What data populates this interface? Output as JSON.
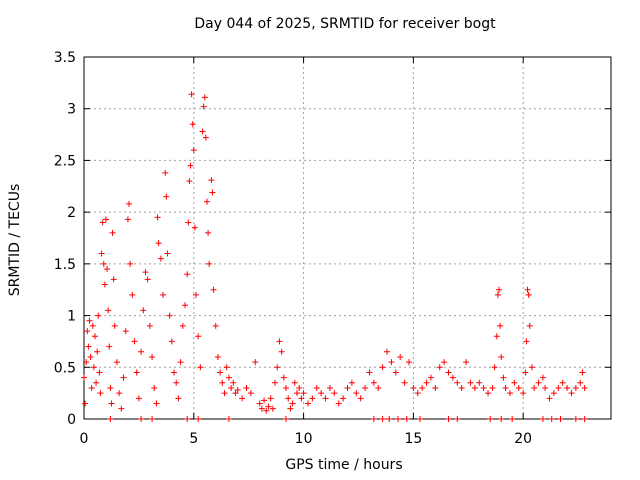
{
  "chart_data": {
    "type": "scatter",
    "title": "Day 044 of 2025, SRMTID for receiver bogt",
    "xlabel": "GPS time / hours",
    "ylabel": "SRMTID / TECUs",
    "xlim": [
      0,
      24
    ],
    "ylim": [
      0,
      3.5
    ],
    "x_ticks": [
      0,
      5,
      10,
      15,
      20
    ],
    "x_tick_labels": [
      "0",
      "5",
      "10",
      "15",
      "20"
    ],
    "y_ticks": [
      0,
      0.5,
      1,
      1.5,
      2,
      2.5,
      3,
      3.5
    ],
    "y_tick_labels": [
      "0",
      "0.5",
      "1",
      "1.5",
      "2",
      "2.5",
      "3",
      "3.5"
    ],
    "grid": true,
    "marker": "+",
    "color": "#ff0000",
    "series": [
      {
        "name": "SRMTID",
        "points": [
          [
            0.0,
            0.4
          ],
          [
            0.05,
            0.15
          ],
          [
            0.1,
            0.55
          ],
          [
            0.15,
            0.85
          ],
          [
            0.2,
            0.7
          ],
          [
            0.25,
            0.95
          ],
          [
            0.3,
            0.6
          ],
          [
            0.35,
            0.3
          ],
          [
            0.4,
            0.9
          ],
          [
            0.45,
            0.5
          ],
          [
            0.5,
            0.8
          ],
          [
            0.55,
            0.35
          ],
          [
            0.6,
            0.65
          ],
          [
            0.65,
            1.0
          ],
          [
            0.7,
            0.45
          ],
          [
            0.75,
            0.25
          ],
          [
            0.8,
            1.6
          ],
          [
            0.85,
            1.9
          ],
          [
            0.9,
            1.5
          ],
          [
            0.95,
            1.3
          ],
          [
            1.0,
            1.93
          ],
          [
            1.05,
            1.45
          ],
          [
            1.1,
            1.05
          ],
          [
            1.15,
            0.7
          ],
          [
            1.2,
            0.3
          ],
          [
            1.25,
            0.15
          ],
          [
            1.3,
            1.8
          ],
          [
            1.35,
            1.35
          ],
          [
            1.4,
            0.9
          ],
          [
            1.5,
            0.55
          ],
          [
            1.6,
            0.25
          ],
          [
            1.7,
            0.1
          ],
          [
            1.8,
            0.4
          ],
          [
            1.9,
            0.85
          ],
          [
            2.0,
            1.93
          ],
          [
            2.05,
            2.08
          ],
          [
            2.1,
            1.5
          ],
          [
            2.2,
            1.2
          ],
          [
            2.3,
            0.75
          ],
          [
            2.4,
            0.45
          ],
          [
            2.5,
            0.2
          ],
          [
            2.6,
            0.65
          ],
          [
            2.7,
            1.05
          ],
          [
            2.8,
            1.42
          ],
          [
            2.9,
            1.35
          ],
          [
            3.0,
            0.9
          ],
          [
            3.1,
            0.6
          ],
          [
            3.2,
            0.3
          ],
          [
            3.3,
            0.15
          ],
          [
            3.35,
            1.95
          ],
          [
            3.4,
            1.7
          ],
          [
            3.5,
            1.55
          ],
          [
            3.6,
            1.2
          ],
          [
            3.7,
            2.38
          ],
          [
            3.75,
            2.15
          ],
          [
            3.8,
            1.6
          ],
          [
            3.9,
            1.0
          ],
          [
            4.0,
            0.75
          ],
          [
            4.1,
            0.45
          ],
          [
            4.2,
            0.35
          ],
          [
            4.3,
            0.2
          ],
          [
            4.4,
            0.55
          ],
          [
            4.5,
            0.9
          ],
          [
            4.6,
            1.1
          ],
          [
            4.7,
            1.4
          ],
          [
            4.75,
            1.9
          ],
          [
            4.8,
            2.3
          ],
          [
            4.85,
            2.45
          ],
          [
            4.9,
            3.14
          ],
          [
            4.95,
            2.85
          ],
          [
            5.0,
            2.6
          ],
          [
            5.05,
            1.85
          ],
          [
            5.1,
            1.2
          ],
          [
            5.2,
            0.8
          ],
          [
            5.3,
            0.5
          ],
          [
            5.4,
            2.78
          ],
          [
            5.45,
            3.02
          ],
          [
            5.5,
            3.11
          ],
          [
            5.55,
            2.72
          ],
          [
            5.6,
            2.1
          ],
          [
            5.65,
            1.8
          ],
          [
            5.7,
            1.5
          ],
          [
            5.8,
            2.31
          ],
          [
            5.85,
            2.19
          ],
          [
            5.9,
            1.25
          ],
          [
            6.0,
            0.9
          ],
          [
            6.1,
            0.6
          ],
          [
            6.2,
            0.45
          ],
          [
            6.3,
            0.35
          ],
          [
            6.4,
            0.25
          ],
          [
            6.5,
            0.5
          ],
          [
            6.6,
            0.4
          ],
          [
            6.7,
            0.3
          ],
          [
            6.8,
            0.35
          ],
          [
            6.9,
            0.25
          ],
          [
            7.0,
            0.28
          ],
          [
            7.2,
            0.2
          ],
          [
            7.4,
            0.3
          ],
          [
            7.6,
            0.25
          ],
          [
            7.8,
            0.55
          ],
          [
            8.0,
            0.15
          ],
          [
            8.1,
            0.1
          ],
          [
            8.2,
            0.18
          ],
          [
            8.3,
            0.08
          ],
          [
            8.4,
            0.12
          ],
          [
            8.5,
            0.2
          ],
          [
            8.6,
            0.1
          ],
          [
            8.7,
            0.35
          ],
          [
            8.8,
            0.5
          ],
          [
            8.9,
            0.75
          ],
          [
            9.0,
            0.65
          ],
          [
            9.1,
            0.4
          ],
          [
            9.2,
            0.3
          ],
          [
            9.3,
            0.2
          ],
          [
            9.4,
            0.1
          ],
          [
            9.5,
            0.15
          ],
          [
            9.6,
            0.35
          ],
          [
            9.7,
            0.25
          ],
          [
            9.8,
            0.3
          ],
          [
            9.9,
            0.2
          ],
          [
            10.0,
            0.25
          ],
          [
            10.2,
            0.15
          ],
          [
            10.4,
            0.2
          ],
          [
            10.6,
            0.3
          ],
          [
            10.8,
            0.25
          ],
          [
            11.0,
            0.2
          ],
          [
            11.2,
            0.3
          ],
          [
            11.4,
            0.25
          ],
          [
            11.6,
            0.15
          ],
          [
            11.8,
            0.2
          ],
          [
            12.0,
            0.3
          ],
          [
            12.2,
            0.35
          ],
          [
            12.4,
            0.25
          ],
          [
            12.6,
            0.2
          ],
          [
            12.8,
            0.3
          ],
          [
            13.0,
            0.45
          ],
          [
            13.2,
            0.35
          ],
          [
            13.4,
            0.3
          ],
          [
            13.6,
            0.5
          ],
          [
            13.8,
            0.65
          ],
          [
            14.0,
            0.55
          ],
          [
            14.2,
            0.45
          ],
          [
            14.4,
            0.6
          ],
          [
            14.6,
            0.35
          ],
          [
            14.8,
            0.55
          ],
          [
            15.0,
            0.3
          ],
          [
            15.2,
            0.25
          ],
          [
            15.4,
            0.3
          ],
          [
            15.6,
            0.35
          ],
          [
            15.8,
            0.4
          ],
          [
            16.0,
            0.3
          ],
          [
            16.2,
            0.5
          ],
          [
            16.4,
            0.55
          ],
          [
            16.6,
            0.45
          ],
          [
            16.8,
            0.4
          ],
          [
            17.0,
            0.35
          ],
          [
            17.2,
            0.3
          ],
          [
            17.4,
            0.55
          ],
          [
            17.6,
            0.35
          ],
          [
            17.8,
            0.3
          ],
          [
            18.0,
            0.35
          ],
          [
            18.2,
            0.3
          ],
          [
            18.4,
            0.25
          ],
          [
            18.6,
            0.3
          ],
          [
            18.7,
            0.5
          ],
          [
            18.8,
            0.8
          ],
          [
            18.85,
            1.2
          ],
          [
            18.9,
            1.25
          ],
          [
            18.95,
            0.9
          ],
          [
            19.0,
            0.6
          ],
          [
            19.1,
            0.4
          ],
          [
            19.2,
            0.3
          ],
          [
            19.4,
            0.25
          ],
          [
            19.6,
            0.35
          ],
          [
            19.8,
            0.3
          ],
          [
            20.0,
            0.25
          ],
          [
            20.1,
            0.45
          ],
          [
            20.15,
            0.75
          ],
          [
            20.2,
            1.25
          ],
          [
            20.25,
            1.2
          ],
          [
            20.3,
            0.9
          ],
          [
            20.4,
            0.5
          ],
          [
            20.5,
            0.3
          ],
          [
            20.7,
            0.35
          ],
          [
            20.9,
            0.4
          ],
          [
            21.0,
            0.3
          ],
          [
            21.2,
            0.2
          ],
          [
            21.4,
            0.25
          ],
          [
            21.6,
            0.3
          ],
          [
            21.8,
            0.35
          ],
          [
            22.0,
            0.3
          ],
          [
            22.2,
            0.25
          ],
          [
            22.4,
            0.3
          ],
          [
            22.6,
            0.35
          ],
          [
            22.7,
            0.45
          ],
          [
            22.8,
            0.3
          ],
          [
            1.2,
            0.0
          ],
          [
            2.6,
            0.0
          ],
          [
            3.1,
            0.0
          ],
          [
            4.7,
            0.0
          ],
          [
            5.2,
            0.0
          ],
          [
            6.6,
            0.0
          ],
          [
            9.2,
            0.0
          ],
          [
            13.2,
            0.0
          ],
          [
            13.6,
            0.0
          ],
          [
            13.9,
            0.0
          ],
          [
            14.3,
            0.0
          ],
          [
            14.7,
            0.0
          ],
          [
            15.3,
            0.0
          ],
          [
            16.6,
            0.0
          ],
          [
            17.0,
            0.0
          ],
          [
            18.5,
            0.0
          ],
          [
            19.0,
            0.0
          ],
          [
            19.5,
            0.0
          ],
          [
            20.9,
            0.0
          ],
          [
            21.3,
            0.0
          ],
          [
            21.7,
            0.0
          ],
          [
            22.4,
            0.0
          ],
          [
            22.8,
            0.0
          ]
        ]
      }
    ]
  }
}
